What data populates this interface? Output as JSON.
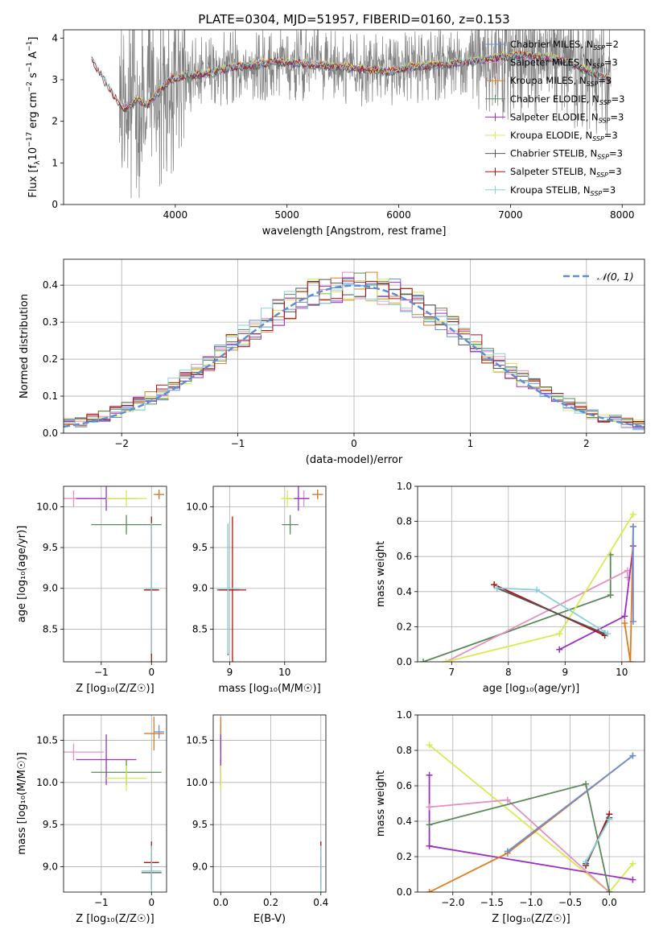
{
  "figure": {
    "title": "PLATE=0304, MJD=51957, FIBERID=0160, z=0.153"
  },
  "colors": {
    "Chabrier MILES": "#6a8fdd",
    "Salpeter MILES": "#e78fc0",
    "Kroupa MILES": "#e07b20",
    "Chabrier ELODIE": "#5a8a5a",
    "Salpeter ELODIE": "#9a30c0",
    "Kroupa ELODIE": "#d7ea50",
    "Chabrier STELIB": "#555555",
    "Salpeter STELIB": "#b01010",
    "Kroupa STELIB": "#8ad0d8",
    "data": "#808080",
    "gauss": "#5b8ed6"
  },
  "chart_data": [
    {
      "id": "spectrum",
      "type": "line",
      "xlabel": "wavelength [Angstrom, rest frame]",
      "ylabel": "Flux [f",
      "ylabel_parts": [
        "Flux [f",
        "λ",
        "10",
        "−17",
        " erg cm",
        "−2",
        " s",
        "−1",
        " A",
        "−1",
        "]"
      ],
      "xlim": [
        3000,
        8200
      ],
      "ylim": [
        0,
        4.2
      ],
      "xticks": [
        4000,
        5000,
        6000,
        7000,
        8000
      ],
      "yticks": [
        0,
        1,
        2,
        3,
        4
      ],
      "grid": false,
      "legend_placement": "top-right",
      "legend": [
        {
          "name": "Chabrier MILES",
          "sub": "SSP",
          "n": "2"
        },
        {
          "name": "Salpeter MILES",
          "sub": "SSP",
          "n": "3"
        },
        {
          "name": "Kroupa MILES",
          "sub": "SSP",
          "n": "3"
        },
        {
          "name": "Chabrier ELODIE",
          "sub": "SSP",
          "n": "3"
        },
        {
          "name": "Salpeter ELODIE",
          "sub": "SSP",
          "n": "3"
        },
        {
          "name": "Kroupa ELODIE",
          "sub": "SSP",
          "n": "3"
        },
        {
          "name": "Chabrier STELIB",
          "sub": "SSP",
          "n": "3"
        },
        {
          "name": "Salpeter STELIB",
          "sub": "SSP",
          "n": "3"
        },
        {
          "name": "Kroupa STELIB",
          "sub": "SSP",
          "n": "3"
        }
      ],
      "model_points": [
        [
          3250,
          3.5
        ],
        [
          3450,
          2.6
        ],
        [
          3550,
          2.3
        ],
        [
          3650,
          2.5
        ],
        [
          3750,
          2.4
        ],
        [
          3850,
          2.7
        ],
        [
          3950,
          3.0
        ],
        [
          4100,
          3.1
        ],
        [
          4300,
          3.15
        ],
        [
          4500,
          3.3
        ],
        [
          4700,
          3.35
        ],
        [
          4900,
          3.45
        ],
        [
          5100,
          3.4
        ],
        [
          5300,
          3.35
        ],
        [
          5500,
          3.3
        ],
        [
          5700,
          3.25
        ],
        [
          5900,
          3.2
        ],
        [
          6100,
          3.3
        ],
        [
          6300,
          3.35
        ],
        [
          6500,
          3.4
        ],
        [
          6700,
          3.45
        ],
        [
          6900,
          3.55
        ],
        [
          7100,
          3.6
        ],
        [
          7300,
          3.55
        ],
        [
          7500,
          3.45
        ],
        [
          7700,
          3.2
        ],
        [
          7900,
          3.0
        ]
      ],
      "data_range": [
        3500,
        7900
      ]
    },
    {
      "id": "residuals",
      "type": "histogram",
      "xlabel": "(data-model)/error",
      "ylabel": "Normed distribution",
      "xlim": [
        -2.5,
        2.5
      ],
      "ylim": [
        0,
        0.47
      ],
      "xticks": [
        -2,
        -1,
        0,
        1,
        2
      ],
      "yticks": [
        0.0,
        0.1,
        0.2,
        0.3,
        0.4
      ],
      "grid": true,
      "legend_placement": "top-right",
      "gauss_label": "𝒩(0, 1)",
      "bin_width": 0.1
    },
    {
      "id": "age_vs_Z",
      "type": "scatter",
      "xlabel": "Z [log",
      "xlabel_text": "Z [log₁₀(Z/Z☉)]",
      "ylabel_text": "age  [log₁₀(age/yr)]",
      "xlim": [
        -1.75,
        0.3
      ],
      "ylim": [
        8.1,
        10.25
      ],
      "xticks": [
        -1,
        0
      ],
      "yticks": [
        8.5,
        9.0,
        9.5,
        10.0
      ],
      "grid": true,
      "points": [
        {
          "m": "Chabrier MILES",
          "x": 0.15,
          "y": 10.15,
          "xe": 0.1,
          "ye": 0.05
        },
        {
          "m": "Salpeter MILES",
          "x": -1.55,
          "y": 10.1,
          "xe": 0.25,
          "ye": 0.1
        },
        {
          "m": "Kroupa MILES",
          "x": 0.15,
          "y": 10.15,
          "xe": 0.1,
          "ye": 0.06
        },
        {
          "m": "Chabrier ELODIE",
          "x": -0.5,
          "y": 9.78,
          "xe": 0.7,
          "ye": 0.12
        },
        {
          "m": "Salpeter ELODIE",
          "x": -0.9,
          "y": 10.1,
          "xe": 0.6,
          "ye": 0.15
        },
        {
          "m": "Kroupa ELODIE",
          "x": -0.5,
          "y": 10.1,
          "xe": 0.4,
          "ye": 0.1
        },
        {
          "m": "Chabrier STELIB",
          "x": 0.0,
          "y": 8.98,
          "xe": 0.15,
          "ye": 0.8
        },
        {
          "m": "Salpeter STELIB",
          "x": 0.0,
          "y": 8.98,
          "xe": 0.15,
          "ye": 0.9
        },
        {
          "m": "Kroupa STELIB",
          "x": 0.0,
          "y": 9.0,
          "xe": 0.12,
          "ye": 0.8
        }
      ]
    },
    {
      "id": "age_vs_mass",
      "type": "scatter",
      "xlabel_text": "mass [log₁₀(M/M☉)]",
      "xlim": [
        8.7,
        10.75
      ],
      "ylim": [
        8.1,
        10.25
      ],
      "xticks": [
        9,
        10
      ],
      "yticks": [
        8.5,
        9.0,
        9.5,
        10.0
      ],
      "grid": true,
      "points": [
        {
          "m": "Chabrier MILES",
          "x": 10.6,
          "y": 10.15,
          "xe": 0.08,
          "ye": 0.05
        },
        {
          "m": "Salpeter MILES",
          "x": 10.35,
          "y": 10.1,
          "xe": 0.1,
          "ye": 0.1
        },
        {
          "m": "Kroupa MILES",
          "x": 10.6,
          "y": 10.15,
          "xe": 0.1,
          "ye": 0.06
        },
        {
          "m": "Chabrier ELODIE",
          "x": 10.1,
          "y": 9.78,
          "xe": 0.15,
          "ye": 0.12
        },
        {
          "m": "Salpeter ELODIE",
          "x": 10.25,
          "y": 10.1,
          "xe": 0.2,
          "ye": 0.15
        },
        {
          "m": "Kroupa ELODIE",
          "x": 10.05,
          "y": 10.1,
          "xe": 0.12,
          "ye": 0.1
        },
        {
          "m": "Chabrier STELIB",
          "x": 8.97,
          "y": 8.98,
          "xe": 0.2,
          "ye": 0.8
        },
        {
          "m": "Salpeter STELIB",
          "x": 9.05,
          "y": 8.98,
          "xe": 0.25,
          "ye": 0.9
        },
        {
          "m": "Kroupa STELIB",
          "x": 8.97,
          "y": 9.0,
          "xe": 0.22,
          "ye": 0.8
        }
      ]
    },
    {
      "id": "weight_vs_age",
      "type": "line",
      "xlabel_text": "age  [log₁₀(age/yr)]",
      "ylabel_text": "mass weight",
      "xlim": [
        6.4,
        10.4
      ],
      "ylim": [
        0,
        1.0
      ],
      "xticks": [
        7,
        8,
        9,
        10
      ],
      "yticks": [
        0.0,
        0.2,
        0.4,
        0.6,
        0.8,
        1.0
      ],
      "grid": true,
      "series": [
        {
          "m": "Chabrier ELODIE",
          "pts": [
            [
              6.5,
              0.0
            ],
            [
              9.8,
              0.38
            ],
            [
              9.8,
              0.61
            ]
          ]
        },
        {
          "m": "Salpeter MILES",
          "pts": [
            [
              6.9,
              0.0
            ],
            [
              10.1,
              0.52
            ],
            [
              10.1,
              0.48
            ]
          ]
        },
        {
          "m": "Kroupa ELODIE",
          "pts": [
            [
              6.9,
              0.0
            ],
            [
              8.9,
              0.16
            ],
            [
              10.2,
              0.84
            ]
          ]
        },
        {
          "m": "Salpeter ELODIE",
          "pts": [
            [
              8.9,
              0.07
            ],
            [
              10.05,
              0.26
            ],
            [
              10.2,
              0.66
            ]
          ]
        },
        {
          "m": "Kroupa MILES",
          "pts": [
            [
              10.05,
              0.22
            ],
            [
              10.15,
              0.0
            ],
            [
              10.2,
              0.77
            ]
          ]
        },
        {
          "m": "Salpeter STELIB",
          "pts": [
            [
              7.75,
              0.44
            ],
            [
              9.7,
              0.15
            ]
          ]
        },
        {
          "m": "Chabrier STELIB",
          "pts": [
            [
              7.8,
              0.42
            ],
            [
              9.7,
              0.16
            ]
          ]
        },
        {
          "m": "Kroupa STELIB",
          "pts": [
            [
              7.8,
              0.42
            ],
            [
              8.5,
              0.41
            ],
            [
              9.75,
              0.16
            ]
          ]
        },
        {
          "m": "Chabrier MILES",
          "pts": [
            [
              10.2,
              0.23
            ],
            [
              10.2,
              0.77
            ]
          ]
        }
      ]
    },
    {
      "id": "mass_vs_Z",
      "type": "scatter",
      "xlabel_text": "Z [log₁₀(Z/Z☉)]",
      "ylabel_text": "mass [log₁₀(M/M☉)]",
      "xlim": [
        -1.75,
        0.3
      ],
      "ylim": [
        8.7,
        10.8
      ],
      "xticks": [
        -1,
        0
      ],
      "yticks": [
        9.0,
        9.5,
        10.0,
        10.5
      ],
      "grid": true,
      "points": [
        {
          "m": "Chabrier MILES",
          "x": 0.15,
          "y": 10.6,
          "xe": 0.1,
          "ye": 0.08
        },
        {
          "m": "Salpeter MILES",
          "x": -1.55,
          "y": 10.36,
          "xe": 0.6,
          "ye": 0.1
        },
        {
          "m": "Kroupa MILES",
          "x": 0.05,
          "y": 10.58,
          "xe": 0.2,
          "ye": 0.2
        },
        {
          "m": "Chabrier ELODIE",
          "x": -0.5,
          "y": 10.12,
          "xe": 0.7,
          "ye": 0.15
        },
        {
          "m": "Salpeter ELODIE",
          "x": -0.9,
          "y": 10.27,
          "xe": 0.6,
          "ye": 0.3
        },
        {
          "m": "Kroupa ELODIE",
          "x": -0.5,
          "y": 10.05,
          "xe": 0.4,
          "ye": 0.15
        },
        {
          "m": "Chabrier STELIB",
          "x": 0.0,
          "y": 8.93,
          "xe": 0.2,
          "ye": 0.2
        },
        {
          "m": "Salpeter STELIB",
          "x": 0.0,
          "y": 9.05,
          "xe": 0.15,
          "ye": 0.25
        },
        {
          "m": "Kroupa STELIB",
          "x": 0.0,
          "y": 8.95,
          "xe": 0.2,
          "ye": 0.3
        }
      ]
    },
    {
      "id": "mass_vs_EBV",
      "type": "scatter",
      "xlabel_text": "E(B-V)",
      "xlim": [
        -0.03,
        0.42
      ],
      "ylim": [
        8.7,
        10.8
      ],
      "xticks": [
        0.0,
        0.2,
        0.4
      ],
      "yticks": [
        9.0,
        9.5,
        10.0,
        10.5
      ],
      "grid": true,
      "points": [
        {
          "m": "Chabrier MILES",
          "x": 0.0,
          "y": 10.6,
          "xe": 0.002,
          "ye": 0.08
        },
        {
          "m": "Salpeter MILES",
          "x": 0.0,
          "y": 10.36,
          "xe": 0.002,
          "ye": 0.1
        },
        {
          "m": "Kroupa MILES",
          "x": 0.0,
          "y": 10.58,
          "xe": 0.002,
          "ye": 0.2
        },
        {
          "m": "Chabrier ELODIE",
          "x": 0.0,
          "y": 10.12,
          "xe": 0.002,
          "ye": 0.15
        },
        {
          "m": "Salpeter ELODIE",
          "x": 0.0,
          "y": 10.27,
          "xe": 0.002,
          "ye": 0.3
        },
        {
          "m": "Kroupa ELODIE",
          "x": 0.0,
          "y": 10.05,
          "xe": 0.002,
          "ye": 0.15
        },
        {
          "m": "Chabrier STELIB",
          "x": 0.4,
          "y": 8.93,
          "xe": 0.002,
          "ye": 0.2
        },
        {
          "m": "Salpeter STELIB",
          "x": 0.4,
          "y": 9.05,
          "xe": 0.002,
          "ye": 0.25
        },
        {
          "m": "Kroupa STELIB",
          "x": 0.4,
          "y": 8.95,
          "xe": 0.002,
          "ye": 0.3
        }
      ]
    },
    {
      "id": "weight_vs_Z",
      "type": "line",
      "xlabel_text": "Z [log₁₀(Z/Z☉)]",
      "ylabel_text": "mass weight",
      "xlim": [
        -2.45,
        0.45
      ],
      "ylim": [
        0,
        1.0
      ],
      "xticks": [
        -2.0,
        -1.5,
        -1.0,
        -0.5,
        0.0
      ],
      "yticks": [
        0.0,
        0.2,
        0.4,
        0.6,
        0.8,
        1.0
      ],
      "grid": true,
      "series": [
        {
          "m": "Kroupa ELODIE",
          "pts": [
            [
              -2.3,
              0.83
            ],
            [
              0.0,
              0.0
            ],
            [
              0.3,
              0.16
            ]
          ]
        },
        {
          "m": "Salpeter ELODIE",
          "pts": [
            [
              -2.3,
              0.66
            ],
            [
              -2.3,
              0.26
            ],
            [
              0.3,
              0.07
            ]
          ]
        },
        {
          "m": "Salpeter MILES",
          "pts": [
            [
              -2.3,
              0.48
            ],
            [
              -1.3,
              0.52
            ],
            [
              0.0,
              0.0
            ]
          ]
        },
        {
          "m": "Chabrier ELODIE",
          "pts": [
            [
              -2.3,
              0.38
            ],
            [
              -0.3,
              0.61
            ],
            [
              0.0,
              0.0
            ]
          ]
        },
        {
          "m": "Kroupa MILES",
          "pts": [
            [
              -2.3,
              0.0
            ],
            [
              -1.3,
              0.22
            ],
            [
              0.3,
              0.77
            ]
          ]
        },
        {
          "m": "Salpeter STELIB",
          "pts": [
            [
              -0.3,
              0.15
            ],
            [
              0.0,
              0.44
            ]
          ]
        },
        {
          "m": "Chabrier STELIB",
          "pts": [
            [
              -0.3,
              0.16
            ],
            [
              0.0,
              0.42
            ]
          ]
        },
        {
          "m": "Kroupa STELIB",
          "pts": [
            [
              -0.3,
              0.17
            ],
            [
              0.0,
              0.41
            ]
          ]
        },
        {
          "m": "Chabrier MILES",
          "pts": [
            [
              -1.3,
              0.23
            ],
            [
              0.3,
              0.77
            ]
          ]
        }
      ]
    }
  ]
}
